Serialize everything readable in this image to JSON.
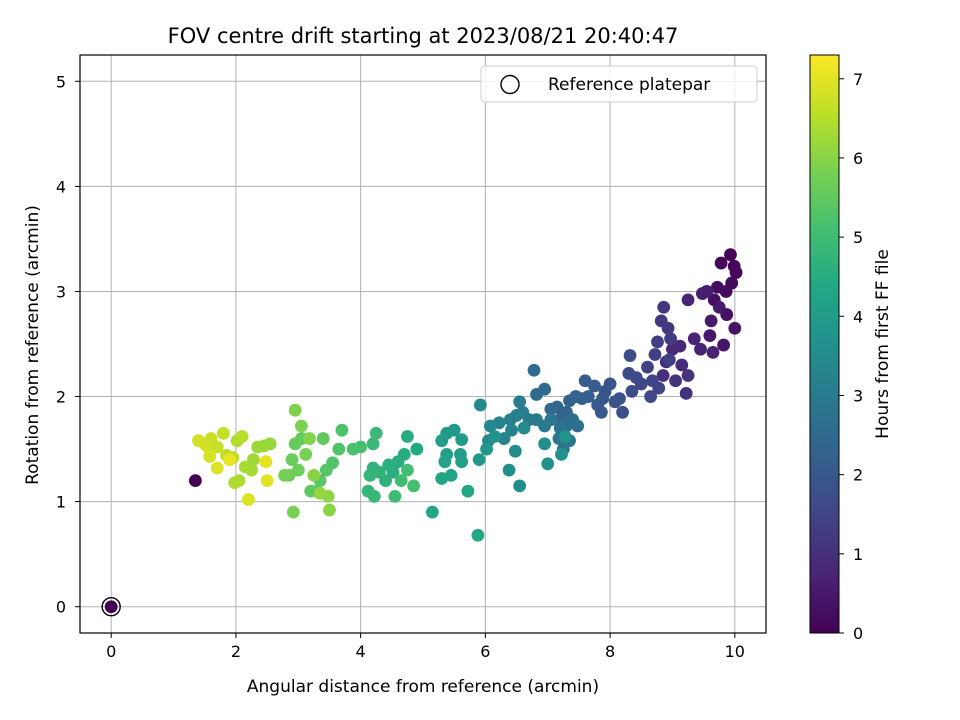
{
  "chart_data": {
    "type": "scatter",
    "title": "FOV centre drift starting at 2023/08/21 20:40:47",
    "xlabel": "Angular distance from reference (arcmin)",
    "ylabel": "Rotation from reference (arcmin)",
    "xlim": [
      -0.5,
      10.5
    ],
    "ylim": [
      -0.25,
      5.25
    ],
    "xticks": [
      0,
      2,
      4,
      6,
      8,
      10
    ],
    "yticks": [
      0,
      1,
      2,
      3,
      4,
      5
    ],
    "grid": true,
    "legend": {
      "position": "top-right",
      "entries": [
        "Reference platepar"
      ]
    },
    "colorbar": {
      "label": "Hours from first FF file",
      "colormap": "viridis",
      "range": [
        0,
        7.3
      ],
      "ticks": [
        0,
        1,
        2,
        3,
        4,
        5,
        6,
        7
      ]
    },
    "reference_point": {
      "x": 0,
      "y": 0,
      "hours": 0
    },
    "points": [
      [
        9.93,
        3.35,
        0.05
      ],
      [
        9.99,
        3.24,
        0.08
      ],
      [
        9.78,
        3.27,
        0.12
      ],
      [
        10.02,
        3.18,
        0.15
      ],
      [
        9.95,
        3.08,
        0.18
      ],
      [
        9.86,
        3.0,
        0.22
      ],
      [
        9.72,
        3.04,
        0.26
      ],
      [
        9.67,
        2.92,
        0.3
      ],
      [
        9.87,
        2.78,
        0.34
      ],
      [
        10.0,
        2.65,
        0.38
      ],
      [
        9.82,
        2.49,
        0.42
      ],
      [
        9.6,
        2.58,
        0.46
      ],
      [
        9.62,
        2.72,
        0.5
      ],
      [
        9.75,
        2.85,
        0.54
      ],
      [
        9.55,
        3.0,
        0.58
      ],
      [
        9.48,
        2.98,
        0.62
      ],
      [
        9.65,
        2.42,
        0.66
      ],
      [
        9.45,
        2.45,
        0.7
      ],
      [
        9.35,
        2.55,
        0.74
      ],
      [
        9.25,
        2.92,
        0.78
      ],
      [
        9.12,
        2.48,
        0.82
      ],
      [
        9.0,
        2.45,
        0.86
      ],
      [
        9.15,
        2.3,
        0.9
      ],
      [
        8.9,
        2.33,
        0.94
      ],
      [
        8.85,
        2.2,
        0.98
      ],
      [
        9.25,
        2.2,
        1.02
      ],
      [
        9.22,
        2.03,
        1.06
      ],
      [
        9.05,
        2.15,
        1.1
      ],
      [
        8.86,
        2.85,
        1.14
      ],
      [
        8.82,
        2.72,
        1.18
      ],
      [
        8.93,
        2.65,
        1.22
      ],
      [
        8.97,
        2.55,
        1.26
      ],
      [
        8.76,
        2.52,
        1.3
      ],
      [
        8.72,
        2.4,
        1.34
      ],
      [
        8.95,
        2.35,
        1.38
      ],
      [
        8.6,
        2.28,
        1.42
      ],
      [
        8.68,
        2.15,
        1.46
      ],
      [
        8.78,
        2.08,
        1.5
      ],
      [
        8.65,
        2.0,
        1.54
      ],
      [
        8.5,
        2.12,
        1.58
      ],
      [
        8.42,
        2.18,
        1.62
      ],
      [
        8.3,
        2.22,
        1.66
      ],
      [
        8.32,
        2.39,
        1.7
      ],
      [
        8.35,
        2.05,
        1.74
      ],
      [
        8.2,
        1.85,
        1.78
      ],
      [
        8.15,
        1.98,
        1.82
      ],
      [
        8.08,
        1.95,
        1.86
      ],
      [
        8.0,
        2.12,
        1.9
      ],
      [
        7.92,
        2.05,
        1.94
      ],
      [
        7.88,
        1.98,
        1.98
      ],
      [
        7.8,
        1.92,
        2.02
      ],
      [
        7.86,
        1.85,
        2.06
      ],
      [
        7.75,
        2.1,
        2.1
      ],
      [
        7.6,
        2.15,
        2.14
      ],
      [
        7.65,
        2.0,
        2.18
      ],
      [
        7.55,
        1.98,
        2.22
      ],
      [
        7.45,
        2.0,
        2.26
      ],
      [
        7.35,
        1.96,
        2.3
      ],
      [
        7.3,
        1.85,
        2.34
      ],
      [
        7.22,
        1.8,
        2.38
      ],
      [
        7.15,
        1.9,
        2.42
      ],
      [
        7.05,
        1.88,
        2.46
      ],
      [
        6.95,
        2.07,
        2.5
      ],
      [
        6.82,
        2.02,
        2.54
      ],
      [
        6.78,
        2.25,
        2.58
      ],
      [
        7.48,
        1.72,
        2.62
      ],
      [
        7.4,
        1.78,
        2.66
      ],
      [
        7.3,
        1.72,
        2.7
      ],
      [
        7.2,
        1.7,
        2.74
      ],
      [
        7.18,
        1.6,
        2.78
      ],
      [
        7.25,
        1.5,
        2.82
      ],
      [
        7.35,
        1.58,
        2.86
      ],
      [
        7.05,
        1.78,
        2.9
      ],
      [
        6.95,
        1.72,
        2.94
      ],
      [
        6.82,
        1.78,
        2.98
      ],
      [
        6.7,
        1.78,
        3.02
      ],
      [
        6.6,
        1.85,
        3.06
      ],
      [
        6.55,
        1.95,
        3.1
      ],
      [
        6.5,
        1.82,
        3.14
      ],
      [
        6.4,
        1.78,
        3.18
      ],
      [
        6.42,
        1.68,
        3.22
      ],
      [
        6.3,
        1.6,
        3.26
      ],
      [
        6.22,
        1.75,
        3.3
      ],
      [
        6.08,
        1.72,
        3.34
      ],
      [
        6.05,
        1.58,
        3.38
      ],
      [
        5.92,
        1.92,
        3.42
      ],
      [
        6.62,
        1.7,
        3.46
      ],
      [
        6.48,
        1.48,
        3.5
      ],
      [
        6.55,
        1.15,
        3.54
      ],
      [
        6.38,
        1.3,
        3.58
      ],
      [
        6.95,
        1.55,
        3.62
      ],
      [
        7.0,
        1.36,
        3.66
      ],
      [
        7.22,
        1.45,
        3.7
      ],
      [
        7.28,
        1.62,
        3.74
      ],
      [
        6.15,
        1.62,
        3.78
      ],
      [
        6.02,
        1.5,
        3.82
      ],
      [
        5.9,
        1.4,
        3.86
      ],
      [
        5.62,
        1.59,
        3.9
      ],
      [
        5.5,
        1.68,
        3.94
      ],
      [
        5.38,
        1.65,
        3.98
      ],
      [
        5.3,
        1.58,
        4.02
      ],
      [
        5.6,
        1.45,
        4.06
      ],
      [
        5.62,
        1.38,
        4.1
      ],
      [
        5.38,
        1.45,
        4.14
      ],
      [
        5.35,
        1.38,
        4.18
      ],
      [
        5.45,
        1.25,
        4.22
      ],
      [
        5.3,
        1.22,
        4.26
      ],
      [
        5.15,
        0.9,
        4.3
      ],
      [
        5.72,
        1.1,
        4.34
      ],
      [
        5.88,
        0.68,
        4.38
      ],
      [
        4.9,
        1.5,
        4.42
      ],
      [
        4.75,
        1.62,
        4.46
      ],
      [
        4.7,
        1.45,
        4.5
      ],
      [
        4.6,
        1.38,
        4.54
      ],
      [
        4.52,
        1.28,
        4.58
      ],
      [
        4.45,
        1.35,
        4.62
      ],
      [
        4.4,
        1.2,
        4.66
      ],
      [
        4.3,
        1.28,
        4.7
      ],
      [
        4.2,
        1.32,
        4.74
      ],
      [
        4.15,
        1.25,
        4.78
      ],
      [
        4.12,
        1.1,
        4.82
      ],
      [
        4.22,
        1.05,
        4.86
      ],
      [
        4.2,
        1.55,
        4.9
      ],
      [
        4.25,
        1.65,
        4.94
      ],
      [
        4.55,
        1.05,
        4.98
      ],
      [
        4.65,
        1.2,
        5.02
      ],
      [
        4.75,
        1.3,
        5.06
      ],
      [
        4.85,
        1.15,
        5.1
      ],
      [
        4.0,
        1.52,
        5.14
      ],
      [
        3.88,
        1.5,
        5.18
      ],
      [
        3.7,
        1.68,
        5.22
      ],
      [
        3.65,
        1.5,
        5.26
      ],
      [
        3.55,
        1.37,
        5.3
      ],
      [
        3.45,
        1.3,
        5.34
      ],
      [
        3.35,
        1.2,
        5.38
      ],
      [
        3.3,
        1.1,
        5.42
      ],
      [
        3.2,
        1.1,
        5.46
      ],
      [
        3.4,
        1.6,
        5.5
      ],
      [
        3.05,
        1.6,
        5.54
      ],
      [
        2.95,
        1.55,
        5.58
      ],
      [
        2.9,
        1.4,
        5.62
      ],
      [
        3.0,
        1.3,
        5.66
      ],
      [
        2.85,
        1.25,
        5.7
      ],
      [
        2.78,
        1.25,
        5.74
      ],
      [
        2.92,
        0.9,
        5.78
      ],
      [
        3.12,
        1.45,
        5.82
      ],
      [
        3.05,
        1.72,
        5.86
      ],
      [
        2.95,
        1.87,
        5.9
      ],
      [
        3.18,
        1.6,
        5.94
      ],
      [
        3.25,
        1.25,
        5.98
      ],
      [
        3.5,
        0.92,
        6.02
      ],
      [
        3.48,
        1.05,
        6.06
      ],
      [
        3.35,
        1.08,
        6.1
      ],
      [
        2.55,
        1.55,
        6.14
      ],
      [
        2.45,
        1.53,
        6.18
      ],
      [
        2.35,
        1.52,
        6.22
      ],
      [
        2.28,
        1.4,
        6.26
      ],
      [
        2.25,
        1.3,
        6.3
      ],
      [
        2.15,
        1.33,
        6.34
      ],
      [
        2.05,
        1.2,
        6.38
      ],
      [
        1.98,
        1.18,
        6.42
      ],
      [
        2.02,
        1.58,
        6.46
      ],
      [
        2.1,
        1.62,
        6.5
      ],
      [
        1.95,
        1.42,
        6.54
      ],
      [
        1.85,
        1.44,
        6.58
      ],
      [
        1.8,
        1.65,
        6.62
      ],
      [
        1.7,
        1.52,
        6.66
      ],
      [
        1.6,
        1.6,
        6.7
      ],
      [
        1.55,
        1.52,
        6.74
      ],
      [
        1.5,
        1.55,
        6.78
      ],
      [
        1.4,
        1.58,
        6.82
      ],
      [
        1.58,
        1.43,
        6.86
      ],
      [
        1.7,
        1.32,
        6.9
      ],
      [
        2.2,
        1.02,
        6.94
      ],
      [
        2.5,
        1.2,
        6.98
      ],
      [
        2.48,
        1.38,
        7.02
      ],
      [
        1.9,
        1.4,
        7.06
      ],
      [
        1.35,
        1.2,
        0.0
      ]
    ]
  }
}
